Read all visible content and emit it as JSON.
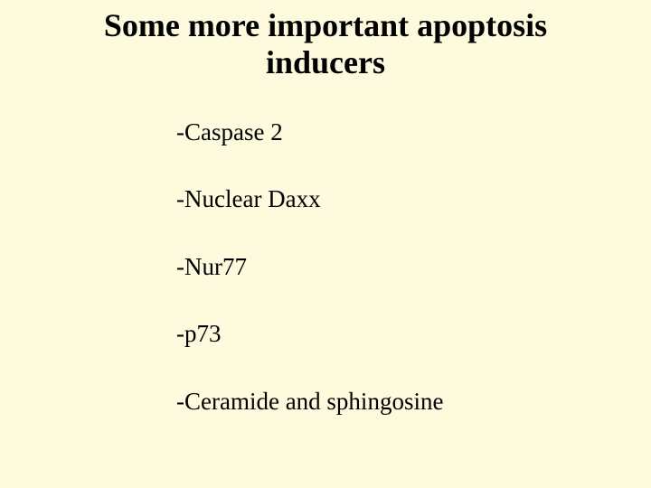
{
  "slide": {
    "background_color": "#fdfade",
    "text_color": "#000000",
    "title": "Some more important apoptosis inducers",
    "title_fontsize": 36,
    "title_fontweight": "bold",
    "list_fontsize": 27,
    "items": [
      {
        "label": "-Caspase 2"
      },
      {
        "label": "-Nuclear Daxx"
      },
      {
        "label": "-Nur77"
      },
      {
        "label": "-p73"
      },
      {
        "label": "-Ceramide and sphingosine"
      }
    ]
  }
}
